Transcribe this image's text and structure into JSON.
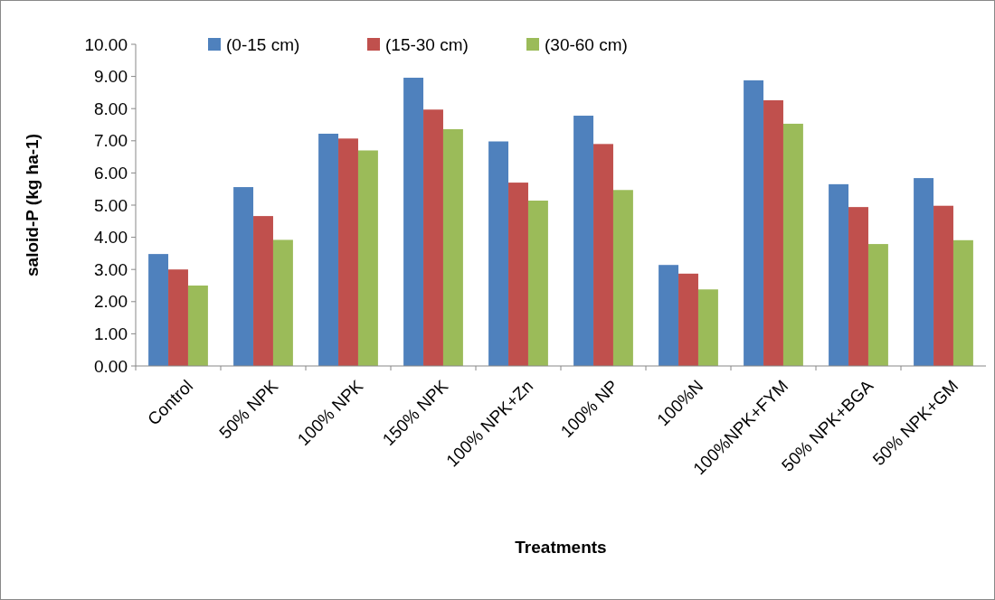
{
  "chart_data": {
    "type": "bar",
    "xlabel": "Treatments",
    "ylabel": "saloid-P (kg ha-1)",
    "categories": [
      "Control",
      "50% NPK",
      "100% NPK",
      "150% NPK",
      "100% NPK+Zn",
      "100% NP",
      "100%N",
      "100%NPK+FYM",
      "50% NPK+BGA",
      "50% NPK+GM"
    ],
    "series": [
      {
        "name": "(0-15 cm)",
        "color": "#4f81bd",
        "values": [
          3.48,
          5.56,
          7.22,
          8.96,
          6.98,
          7.78,
          3.14,
          8.88,
          5.65,
          5.84
        ]
      },
      {
        "name": "(15-30 cm)",
        "color": "#c0504d",
        "values": [
          3.0,
          4.66,
          7.07,
          7.97,
          5.7,
          6.9,
          2.87,
          8.26,
          4.94,
          4.98
        ]
      },
      {
        "name": "(30-60 cm)",
        "color": "#9bbb59",
        "values": [
          2.5,
          3.92,
          6.7,
          7.36,
          5.14,
          5.47,
          2.38,
          7.53,
          3.79,
          3.91
        ]
      }
    ],
    "ylim": [
      0,
      10
    ],
    "yticks": [
      {
        "value": 0,
        "label": "0.00"
      },
      {
        "value": 1,
        "label": "1.00"
      },
      {
        "value": 2,
        "label": "2.00"
      },
      {
        "value": 3,
        "label": "3.00"
      },
      {
        "value": 4,
        "label": "4.00"
      },
      {
        "value": 5,
        "label": "5.00"
      },
      {
        "value": 6,
        "label": "6.00"
      },
      {
        "value": 7,
        "label": "7.00"
      },
      {
        "value": 8,
        "label": "8.00"
      },
      {
        "value": 9,
        "label": "9.00"
      },
      {
        "value": 10,
        "label": "10.00"
      }
    ],
    "legend": "top",
    "grid": false
  }
}
